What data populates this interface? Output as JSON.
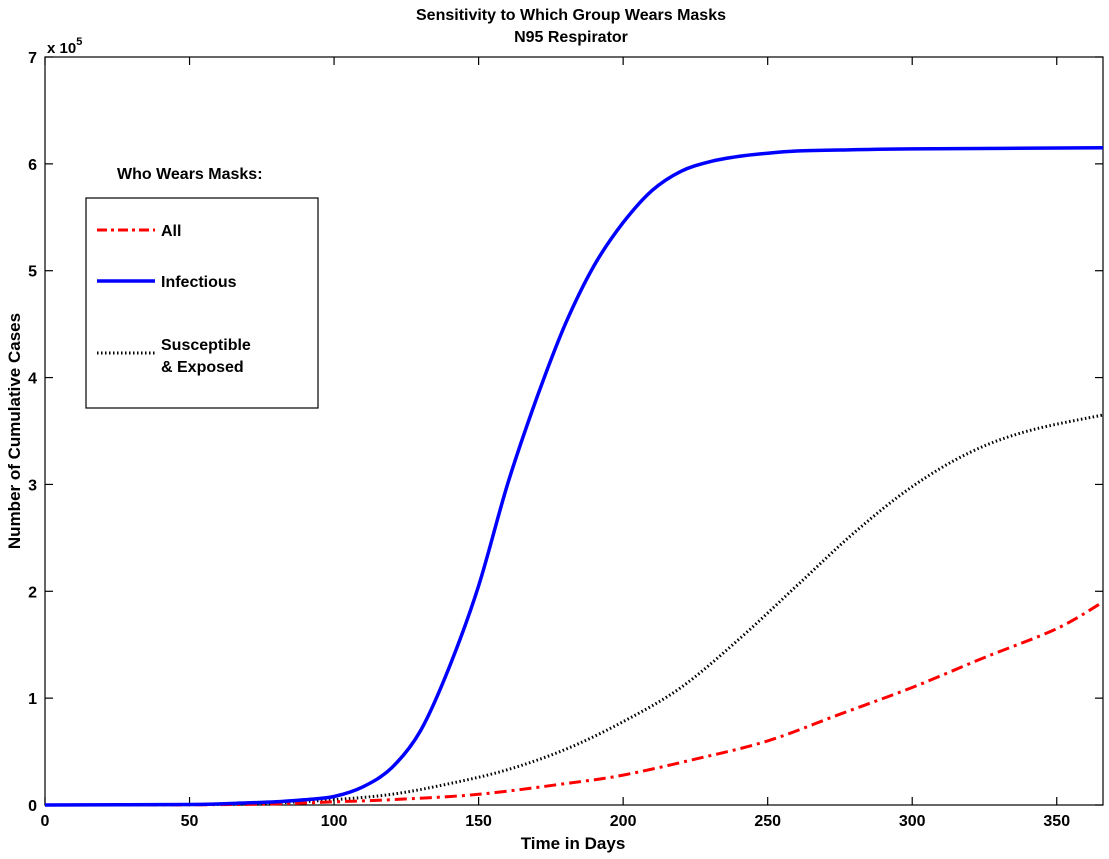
{
  "chart_data": {
    "type": "line",
    "title": "Sensitivity to Which Group Wears Masks",
    "subtitle": "N95 Respirator",
    "xlabel": "Time in Days",
    "ylabel": "Number of Cumulative Cases",
    "y_exponent_label": "x 10",
    "y_exponent_power": "5",
    "xlim": [
      0,
      366
    ],
    "ylim": [
      0,
      7
    ],
    "y_units_multiplier": 100000,
    "x_ticks": [
      0,
      50,
      100,
      150,
      200,
      250,
      300,
      350
    ],
    "y_ticks": [
      0,
      1,
      2,
      3,
      4,
      5,
      6,
      7
    ],
    "grid": false,
    "legend_title": "Who Wears Masks:",
    "legend_position": "upper-left",
    "series": [
      {
        "name": "All",
        "color": "#ff0000",
        "style": "dash-dot",
        "x": [
          0,
          50,
          80,
          100,
          120,
          150,
          180,
          200,
          225,
          250,
          275,
          300,
          325,
          350,
          366
        ],
        "y": [
          0,
          0.002,
          0.01,
          0.03,
          0.05,
          0.1,
          0.2,
          0.28,
          0.43,
          0.6,
          0.85,
          1.1,
          1.38,
          1.65,
          1.9
        ]
      },
      {
        "name": "Infectious",
        "color": "#0000ff",
        "style": "solid",
        "x": [
          0,
          50,
          70,
          80,
          90,
          100,
          110,
          120,
          130,
          140,
          150,
          160,
          170,
          180,
          190,
          200,
          210,
          220,
          230,
          240,
          250,
          260,
          275,
          300,
          366
        ],
        "y": [
          0,
          0.005,
          0.02,
          0.03,
          0.05,
          0.08,
          0.17,
          0.35,
          0.7,
          1.3,
          2.05,
          3.0,
          3.8,
          4.5,
          5.05,
          5.45,
          5.75,
          5.93,
          6.02,
          6.07,
          6.1,
          6.12,
          6.13,
          6.14,
          6.15
        ]
      },
      {
        "name": "Susceptible & Exposed",
        "legend_lines": [
          "Susceptible",
          "& Exposed"
        ],
        "color": "#000000",
        "style": "dotted",
        "x": [
          0,
          60,
          80,
          100,
          120,
          140,
          160,
          180,
          200,
          220,
          240,
          260,
          280,
          300,
          320,
          340,
          366
        ],
        "y": [
          0,
          0.005,
          0.02,
          0.05,
          0.1,
          0.2,
          0.33,
          0.52,
          0.78,
          1.1,
          1.55,
          2.05,
          2.55,
          2.98,
          3.3,
          3.5,
          3.65
        ]
      }
    ]
  }
}
